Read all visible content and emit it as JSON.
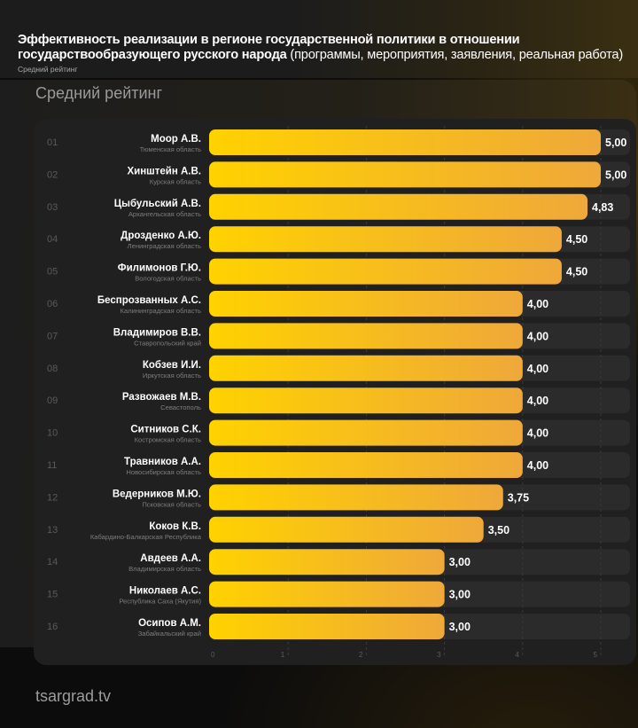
{
  "header": {
    "title_bold": "Эффективность реализации в регионе государственной политики в отношении государствообразующего русского народа",
    "title_line1": "Эффективность реализации в регионе государственной политики в отношении",
    "title_line2_bold": "государствообразующего русского народа",
    "title_line2_normal": " (программы, мероприятия, заявления, реальная работа)",
    "subtitle": "Средний рейтинг"
  },
  "section_title": "Средний рейтинг",
  "footer": {
    "logo": "tsargrad.tv"
  },
  "colors": {
    "bar_start": "#FFD200",
    "bar_end": "#EFA83A",
    "track": "#2b2b2b",
    "panel": "#202020"
  },
  "chart_data": {
    "type": "bar",
    "orientation": "horizontal",
    "title": "Средний рейтинг",
    "xlim": [
      0,
      5
    ],
    "x_ticks": [
      "0",
      "1",
      "2",
      "3",
      "4",
      "5"
    ],
    "grid": "vertical dashed",
    "rows": [
      {
        "rank": "01",
        "name": "Моор А.В.",
        "region": "Тюменская область",
        "value": 5.0,
        "label": "5,00"
      },
      {
        "rank": "02",
        "name": "Хинштейн А.В.",
        "region": "Курская область",
        "value": 5.0,
        "label": "5,00"
      },
      {
        "rank": "03",
        "name": "Цыбульский А.В.",
        "region": "Архангельская область",
        "value": 4.83,
        "label": "4,83"
      },
      {
        "rank": "04",
        "name": "Дрозденко А.Ю.",
        "region": "Ленинградская область",
        "value": 4.5,
        "label": "4,50"
      },
      {
        "rank": "05",
        "name": "Филимонов Г.Ю.",
        "region": "Вологодская область",
        "value": 4.5,
        "label": "4,50"
      },
      {
        "rank": "06",
        "name": "Беспрозванных А.С.",
        "region": "Калининградская область",
        "value": 4.0,
        "label": "4,00"
      },
      {
        "rank": "07",
        "name": "Владимиров В.В.",
        "region": "Ставропольский край",
        "value": 4.0,
        "label": "4,00"
      },
      {
        "rank": "08",
        "name": "Кобзев И.И.",
        "region": "Иркутская область",
        "value": 4.0,
        "label": "4,00"
      },
      {
        "rank": "09",
        "name": "Развожаев М.В.",
        "region": "Севастополь",
        "value": 4.0,
        "label": "4,00"
      },
      {
        "rank": "10",
        "name": "Ситников С.К.",
        "region": "Костромская область",
        "value": 4.0,
        "label": "4,00"
      },
      {
        "rank": "11",
        "name": "Травников А.А.",
        "region": "Новосибирская область",
        "value": 4.0,
        "label": "4,00"
      },
      {
        "rank": "12",
        "name": "Ведерников М.Ю.",
        "region": "Псковская область",
        "value": 3.75,
        "label": "3,75"
      },
      {
        "rank": "13",
        "name": "Коков К.В.",
        "region": "Кабардино-Балкарская Республика",
        "value": 3.5,
        "label": "3,50"
      },
      {
        "rank": "14",
        "name": "Авдеев А.А.",
        "region": "Владимирская область",
        "value": 3.0,
        "label": "3,00"
      },
      {
        "rank": "15",
        "name": "Николаев А.С.",
        "region": "Республика Саха (Якутия)",
        "value": 3.0,
        "label": "3,00"
      },
      {
        "rank": "16",
        "name": "Осипов А.М.",
        "region": "Забайкальский край",
        "value": 3.0,
        "label": "3,00"
      }
    ]
  }
}
